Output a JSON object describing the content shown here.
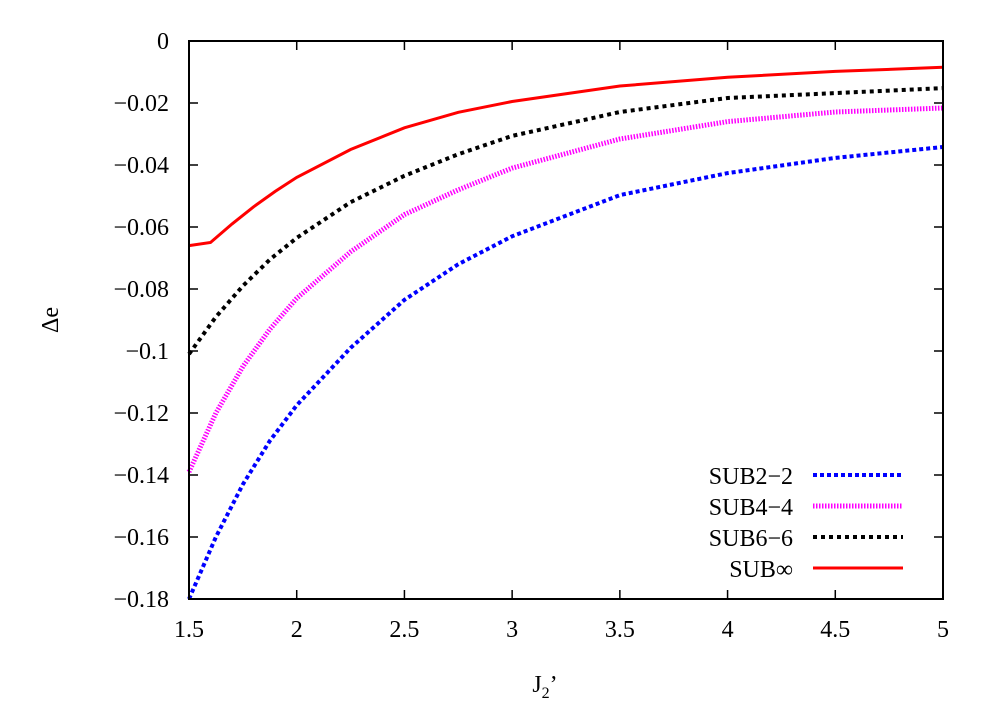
{
  "chart_data": {
    "type": "line",
    "xlabel": {
      "main": "J",
      "sub": "2",
      "prime": "’"
    },
    "ylabel": "Δe",
    "xlim": [
      1.5,
      5
    ],
    "ylim": [
      -0.18,
      0
    ],
    "xticks": [
      1.5,
      2,
      2.5,
      3,
      3.5,
      4,
      4.5,
      5
    ],
    "xtick_labels": [
      "1.5",
      "2",
      "2.5",
      "3",
      "3.5",
      "4",
      "4.5",
      "5"
    ],
    "yticks": [
      0,
      -0.02,
      -0.04,
      -0.06,
      -0.08,
      -0.1,
      -0.12,
      -0.14,
      -0.16,
      -0.18
    ],
    "ytick_labels": [
      "0",
      "−0.02",
      "−0.04",
      "−0.06",
      "−0.08",
      "−0.1",
      "−0.12",
      "−0.14",
      "−0.16",
      "−0.18"
    ],
    "grid": false,
    "legend_position": "bottom-right",
    "series": [
      {
        "name": "SUB2−2",
        "color": "#0000ff",
        "style": "dotted",
        "x": [
          1.5,
          1.625,
          1.75,
          1.875,
          2,
          2.25,
          2.5,
          2.75,
          3,
          3.5,
          4,
          4.5,
          5
        ],
        "y": [
          -0.18,
          -0.16,
          -0.143,
          -0.129,
          -0.1175,
          -0.099,
          -0.0835,
          -0.072,
          -0.063,
          -0.0497,
          -0.0426,
          -0.0377,
          -0.0342
        ]
      },
      {
        "name": "SUB4−4",
        "color": "#ff00ff",
        "style": "dense-dotted",
        "x": [
          1.5,
          1.625,
          1.75,
          1.875,
          2,
          2.25,
          2.5,
          2.75,
          3,
          3.5,
          4,
          4.5,
          5
        ],
        "y": [
          -0.139,
          -0.12,
          -0.105,
          -0.093,
          -0.083,
          -0.068,
          -0.056,
          -0.048,
          -0.041,
          -0.0316,
          -0.026,
          -0.0229,
          -0.0216
        ]
      },
      {
        "name": "SUB6−6",
        "color": "#000000",
        "style": "dashed",
        "x": [
          1.5,
          1.625,
          1.75,
          1.875,
          2,
          2.25,
          2.5,
          2.75,
          3,
          3.5,
          4,
          4.5,
          5
        ],
        "y": [
          -0.101,
          -0.089,
          -0.079,
          -0.0705,
          -0.0635,
          -0.052,
          -0.0435,
          -0.0365,
          -0.0306,
          -0.0229,
          -0.0184,
          -0.0168,
          -0.0152
        ]
      },
      {
        "name": "SUB∞",
        "color": "#ff0000",
        "style": "solid",
        "x": [
          1.5,
          1.6,
          1.7,
          1.8,
          1.9,
          2,
          2.25,
          2.5,
          2.75,
          3,
          3.5,
          4,
          4.5,
          5
        ],
        "y": [
          -0.066,
          -0.065,
          -0.059,
          -0.0535,
          -0.0485,
          -0.044,
          -0.035,
          -0.028,
          -0.023,
          -0.0195,
          -0.0145,
          -0.0117,
          -0.0098,
          -0.0085
        ]
      }
    ]
  }
}
